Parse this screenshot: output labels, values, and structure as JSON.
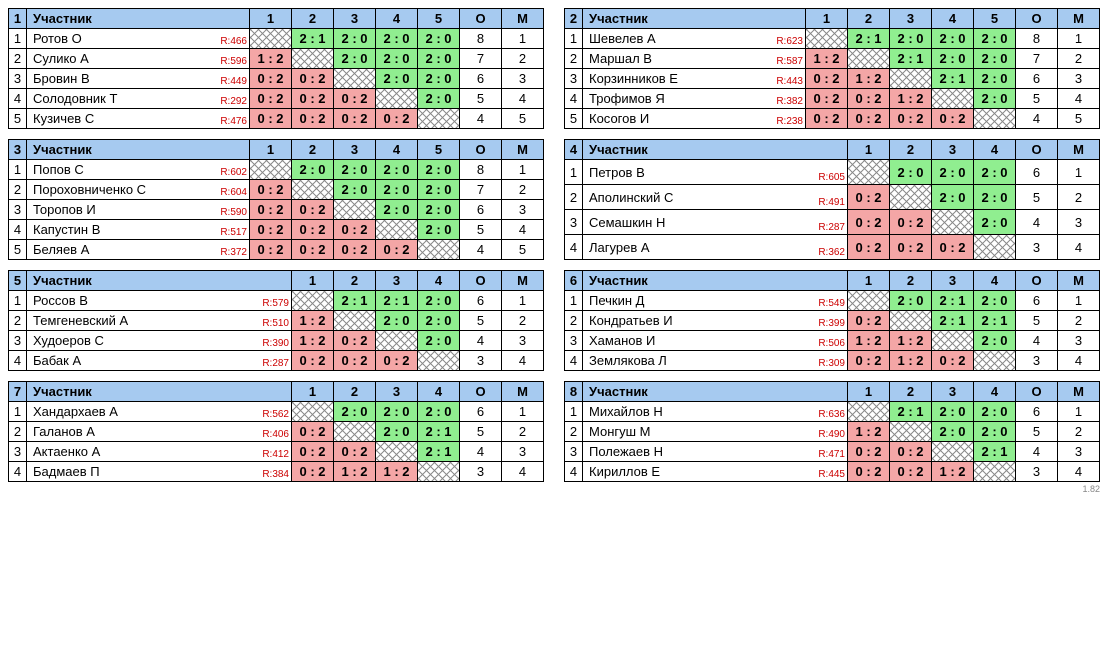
{
  "labels": {
    "participant": "Участник",
    "points": "О",
    "place": "М"
  },
  "footer": "1.82",
  "colors": {
    "header_bg": "#a6caf0",
    "win_bg": "#90ee90",
    "loss_bg": "#f4a6a6",
    "rating_color": "#c00"
  },
  "groups": [
    {
      "number": 1,
      "rounds": 5,
      "players": [
        {
          "n": 1,
          "name": "Ротов О",
          "rating": "R:466",
          "scores": [
            "",
            "2 : 1",
            "2 : 0",
            "2 : 0",
            "2 : 0"
          ],
          "results": [
            "d",
            "w",
            "w",
            "w",
            "w"
          ],
          "o": 8,
          "m": 1
        },
        {
          "n": 2,
          "name": "Сулико А",
          "rating": "R:596",
          "scores": [
            "1 : 2",
            "",
            "2 : 0",
            "2 : 0",
            "2 : 0"
          ],
          "results": [
            "l",
            "d",
            "w",
            "w",
            "w"
          ],
          "o": 7,
          "m": 2
        },
        {
          "n": 3,
          "name": "Бровин В",
          "rating": "R:449",
          "scores": [
            "0 : 2",
            "0 : 2",
            "",
            "2 : 0",
            "2 : 0"
          ],
          "results": [
            "l",
            "l",
            "d",
            "w",
            "w"
          ],
          "o": 6,
          "m": 3
        },
        {
          "n": 4,
          "name": "Солодовник Т",
          "rating": "R:292",
          "scores": [
            "0 : 2",
            "0 : 2",
            "0 : 2",
            "",
            "2 : 0"
          ],
          "results": [
            "l",
            "l",
            "l",
            "d",
            "w"
          ],
          "o": 5,
          "m": 4
        },
        {
          "n": 5,
          "name": "Кузичев С",
          "rating": "R:476",
          "scores": [
            "0 : 2",
            "0 : 2",
            "0 : 2",
            "0 : 2",
            ""
          ],
          "results": [
            "l",
            "l",
            "l",
            "l",
            "d"
          ],
          "o": 4,
          "m": 5
        }
      ]
    },
    {
      "number": 2,
      "rounds": 5,
      "players": [
        {
          "n": 1,
          "name": "Шевелев А",
          "rating": "R:623",
          "scores": [
            "",
            "2 : 1",
            "2 : 0",
            "2 : 0",
            "2 : 0"
          ],
          "results": [
            "d",
            "w",
            "w",
            "w",
            "w"
          ],
          "o": 8,
          "m": 1
        },
        {
          "n": 2,
          "name": "Маршал В",
          "rating": "R:587",
          "scores": [
            "1 : 2",
            "",
            "2 : 1",
            "2 : 0",
            "2 : 0"
          ],
          "results": [
            "l",
            "d",
            "w",
            "w",
            "w"
          ],
          "o": 7,
          "m": 2
        },
        {
          "n": 3,
          "name": "Корзинников Е",
          "rating": "R:443",
          "scores": [
            "0 : 2",
            "1 : 2",
            "",
            "2 : 1",
            "2 : 0"
          ],
          "results": [
            "l",
            "l",
            "d",
            "w",
            "w"
          ],
          "o": 6,
          "m": 3
        },
        {
          "n": 4,
          "name": "Трофимов Я",
          "rating": "R:382",
          "scores": [
            "0 : 2",
            "0 : 2",
            "1 : 2",
            "",
            "2 : 0"
          ],
          "results": [
            "l",
            "l",
            "l",
            "d",
            "w"
          ],
          "o": 5,
          "m": 4
        },
        {
          "n": 5,
          "name": "Косогов И",
          "rating": "R:238",
          "scores": [
            "0 : 2",
            "0 : 2",
            "0 : 2",
            "0 : 2",
            ""
          ],
          "results": [
            "l",
            "l",
            "l",
            "l",
            "d"
          ],
          "o": 4,
          "m": 5
        }
      ]
    },
    {
      "number": 3,
      "rounds": 5,
      "players": [
        {
          "n": 1,
          "name": "Попов С",
          "rating": "R:602",
          "scores": [
            "",
            "2 : 0",
            "2 : 0",
            "2 : 0",
            "2 : 0"
          ],
          "results": [
            "d",
            "w",
            "w",
            "w",
            "w"
          ],
          "o": 8,
          "m": 1
        },
        {
          "n": 2,
          "name": "Пороховниченко С",
          "rating": "R:604",
          "scores": [
            "0 : 2",
            "",
            "2 : 0",
            "2 : 0",
            "2 : 0"
          ],
          "results": [
            "l",
            "d",
            "w",
            "w",
            "w"
          ],
          "o": 7,
          "m": 2
        },
        {
          "n": 3,
          "name": "Торопов И",
          "rating": "R:590",
          "scores": [
            "0 : 2",
            "0 : 2",
            "",
            "2 : 0",
            "2 : 0"
          ],
          "results": [
            "l",
            "l",
            "d",
            "w",
            "w"
          ],
          "o": 6,
          "m": 3
        },
        {
          "n": 4,
          "name": "Капустин В",
          "rating": "R:517",
          "scores": [
            "0 : 2",
            "0 : 2",
            "0 : 2",
            "",
            "2 : 0"
          ],
          "results": [
            "l",
            "l",
            "l",
            "d",
            "w"
          ],
          "o": 5,
          "m": 4
        },
        {
          "n": 5,
          "name": "Беляев А",
          "rating": "R:372",
          "scores": [
            "0 : 2",
            "0 : 2",
            "0 : 2",
            "0 : 2",
            ""
          ],
          "results": [
            "l",
            "l",
            "l",
            "l",
            "d"
          ],
          "o": 4,
          "m": 5
        }
      ]
    },
    {
      "number": 4,
      "rounds": 4,
      "players": [
        {
          "n": 1,
          "name": "Петров В",
          "rating": "R:605",
          "scores": [
            "",
            "2 : 0",
            "2 : 0",
            "2 : 0"
          ],
          "results": [
            "d",
            "w",
            "w",
            "w"
          ],
          "o": 6,
          "m": 1
        },
        {
          "n": 2,
          "name": "Аполинский С",
          "rating": "R:491",
          "scores": [
            "0 : 2",
            "",
            "2 : 0",
            "2 : 0"
          ],
          "results": [
            "l",
            "d",
            "w",
            "w"
          ],
          "o": 5,
          "m": 2
        },
        {
          "n": 3,
          "name": "Семашкин Н",
          "rating": "R:287",
          "scores": [
            "0 : 2",
            "0 : 2",
            "",
            "2 : 0"
          ],
          "results": [
            "l",
            "l",
            "d",
            "w"
          ],
          "o": 4,
          "m": 3
        },
        {
          "n": 4,
          "name": "Лагурев А",
          "rating": "R:362",
          "scores": [
            "0 : 2",
            "0 : 2",
            "0 : 2",
            ""
          ],
          "results": [
            "l",
            "l",
            "l",
            "d"
          ],
          "o": 3,
          "m": 4
        }
      ]
    },
    {
      "number": 5,
      "rounds": 4,
      "players": [
        {
          "n": 1,
          "name": "Россов В",
          "rating": "R:579",
          "scores": [
            "",
            "2 : 1",
            "2 : 1",
            "2 : 0"
          ],
          "results": [
            "d",
            "w",
            "w",
            "w"
          ],
          "o": 6,
          "m": 1
        },
        {
          "n": 2,
          "name": "Темгеневский А",
          "rating": "R:510",
          "scores": [
            "1 : 2",
            "",
            "2 : 0",
            "2 : 0"
          ],
          "results": [
            "l",
            "d",
            "w",
            "w"
          ],
          "o": 5,
          "m": 2
        },
        {
          "n": 3,
          "name": "Худоеров С",
          "rating": "R:390",
          "scores": [
            "1 : 2",
            "0 : 2",
            "",
            "2 : 0"
          ],
          "results": [
            "l",
            "l",
            "d",
            "w"
          ],
          "o": 4,
          "m": 3
        },
        {
          "n": 4,
          "name": "Бабак А",
          "rating": "R:287",
          "scores": [
            "0 : 2",
            "0 : 2",
            "0 : 2",
            ""
          ],
          "results": [
            "l",
            "l",
            "l",
            "d"
          ],
          "o": 3,
          "m": 4
        }
      ]
    },
    {
      "number": 6,
      "rounds": 4,
      "players": [
        {
          "n": 1,
          "name": "Печкин Д",
          "rating": "R:549",
          "scores": [
            "",
            "2 : 0",
            "2 : 1",
            "2 : 0"
          ],
          "results": [
            "d",
            "w",
            "w",
            "w"
          ],
          "o": 6,
          "m": 1
        },
        {
          "n": 2,
          "name": "Кондратьев И",
          "rating": "R:399",
          "scores": [
            "0 : 2",
            "",
            "2 : 1",
            "2 : 1"
          ],
          "results": [
            "l",
            "d",
            "w",
            "w"
          ],
          "o": 5,
          "m": 2
        },
        {
          "n": 3,
          "name": "Хаманов И",
          "rating": "R:506",
          "scores": [
            "1 : 2",
            "1 : 2",
            "",
            "2 : 0"
          ],
          "results": [
            "l",
            "l",
            "d",
            "w"
          ],
          "o": 4,
          "m": 3
        },
        {
          "n": 4,
          "name": "Землякова Л",
          "rating": "R:309",
          "scores": [
            "0 : 2",
            "1 : 2",
            "0 : 2",
            ""
          ],
          "results": [
            "l",
            "l",
            "l",
            "d"
          ],
          "o": 3,
          "m": 4
        }
      ]
    },
    {
      "number": 7,
      "rounds": 4,
      "players": [
        {
          "n": 1,
          "name": "Хандархаев А",
          "rating": "R:562",
          "scores": [
            "",
            "2 : 0",
            "2 : 0",
            "2 : 0"
          ],
          "results": [
            "d",
            "w",
            "w",
            "w"
          ],
          "o": 6,
          "m": 1
        },
        {
          "n": 2,
          "name": "Галанов А",
          "rating": "R:406",
          "scores": [
            "0 : 2",
            "",
            "2 : 0",
            "2 : 1"
          ],
          "results": [
            "l",
            "d",
            "w",
            "w"
          ],
          "o": 5,
          "m": 2
        },
        {
          "n": 3,
          "name": "Актаенко А",
          "rating": "R:412",
          "scores": [
            "0 : 2",
            "0 : 2",
            "",
            "2 : 1"
          ],
          "results": [
            "l",
            "l",
            "d",
            "w"
          ],
          "o": 4,
          "m": 3
        },
        {
          "n": 4,
          "name": "Бадмаев П",
          "rating": "R:384",
          "scores": [
            "0 : 2",
            "1 : 2",
            "1 : 2",
            ""
          ],
          "results": [
            "l",
            "l",
            "l",
            "d"
          ],
          "o": 3,
          "m": 4
        }
      ]
    },
    {
      "number": 8,
      "rounds": 4,
      "players": [
        {
          "n": 1,
          "name": "Михайлов Н",
          "rating": "R:636",
          "scores": [
            "",
            "2 : 1",
            "2 : 0",
            "2 : 0"
          ],
          "results": [
            "d",
            "w",
            "w",
            "w"
          ],
          "o": 6,
          "m": 1
        },
        {
          "n": 2,
          "name": "Монгуш М",
          "rating": "R:490",
          "scores": [
            "1 : 2",
            "",
            "2 : 0",
            "2 : 0"
          ],
          "results": [
            "l",
            "d",
            "w",
            "w"
          ],
          "o": 5,
          "m": 2
        },
        {
          "n": 3,
          "name": "Полежаев Н",
          "rating": "R:471",
          "scores": [
            "0 : 2",
            "0 : 2",
            "",
            "2 : 1"
          ],
          "results": [
            "l",
            "l",
            "d",
            "w"
          ],
          "o": 4,
          "m": 3
        },
        {
          "n": 4,
          "name": "Кириллов Е",
          "rating": "R:445",
          "scores": [
            "0 : 2",
            "0 : 2",
            "1 : 2",
            ""
          ],
          "results": [
            "l",
            "l",
            "l",
            "d"
          ],
          "o": 3,
          "m": 4
        }
      ]
    }
  ]
}
